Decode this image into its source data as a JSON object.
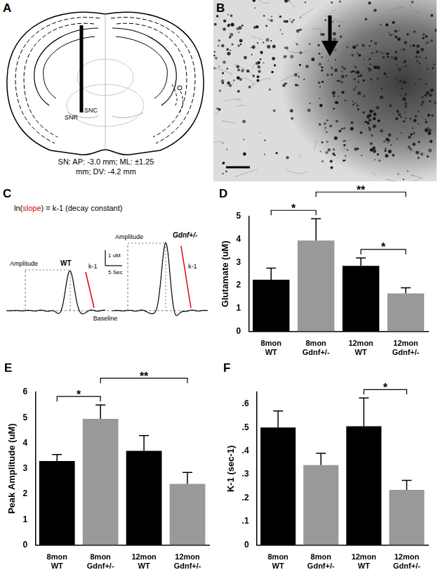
{
  "atlas": {
    "panel": "A",
    "regions": [
      "SNC",
      "SNR"
    ],
    "caption": [
      "SN:  AP: -3.0 mm; ML: ±1.25",
      "mm; DV: -4.2 mm"
    ]
  },
  "micrograph": {
    "panel": "B"
  },
  "traces": {
    "panel": "C",
    "formula": {
      "before": "ln(",
      "highlight": "slope",
      "after": ") = k-1 (decay constant)"
    },
    "names": [
      "WT",
      "Gdnf+/-"
    ],
    "amplitude_label": "Amplitude",
    "decay_label": "k-1",
    "baseline_label": "Baseline",
    "scale_y_label": "1 uM",
    "scale_x_label": "5 Sec"
  },
  "chart_data": [
    {
      "panel": "D",
      "type": "bar",
      "ylabel": "Glutamate (uM)",
      "categories": [
        "8mon WT",
        "8mon Gdnf+/-",
        "12mon WT",
        "12mon Gdnf+/-"
      ],
      "values": [
        2.25,
        3.95,
        2.85,
        1.65
      ],
      "errors": [
        0.5,
        0.95,
        0.35,
        0.25
      ],
      "colors": [
        "#000000",
        "#999999",
        "#000000",
        "#999999"
      ],
      "ylim": [
        0,
        5
      ],
      "yticks": [
        0,
        1,
        2,
        3,
        4,
        5
      ],
      "grid": false,
      "significance": [
        {
          "from": 0,
          "to": 1,
          "label": "*"
        },
        {
          "from": 2,
          "to": 3,
          "label": "*"
        },
        {
          "from": 1,
          "to": 3,
          "label": "**"
        }
      ]
    },
    {
      "panel": "E",
      "type": "bar",
      "ylabel": "Peak Amplitude (uM)",
      "categories": [
        "8mon WT",
        "8mon Gdnf+/-",
        "12mon WT",
        "12mon Gdnf+/-"
      ],
      "values": [
        3.3,
        4.95,
        3.7,
        2.4
      ],
      "errors": [
        0.25,
        0.55,
        0.6,
        0.45
      ],
      "colors": [
        "#000000",
        "#999999",
        "#000000",
        "#999999"
      ],
      "ylim": [
        0,
        6
      ],
      "yticks": [
        0,
        1,
        2,
        3,
        4,
        5,
        6
      ],
      "grid": false,
      "significance": [
        {
          "from": 0,
          "to": 1,
          "label": "*"
        },
        {
          "from": 1,
          "to": 3,
          "label": "**"
        }
      ]
    },
    {
      "panel": "F",
      "type": "bar",
      "ylabel": "K-1 (sec-1)",
      "categories": [
        "8mon WT",
        "8mon Gdnf+/-",
        "12mon WT",
        "12mon Gdnf+/-"
      ],
      "values": [
        0.5,
        0.34,
        0.505,
        0.235
      ],
      "errors": [
        0.07,
        0.05,
        0.12,
        0.04
      ],
      "colors": [
        "#000000",
        "#999999",
        "#000000",
        "#999999"
      ],
      "ylim": [
        0,
        0.65
      ],
      "yticks": [
        0,
        {
          "value": 0.1,
          "label": ".1"
        },
        {
          "value": 0.2,
          "label": ".2"
        },
        {
          "value": 0.3,
          "label": ".3"
        },
        {
          "value": 0.4,
          "label": ".4"
        },
        {
          "value": 0.5,
          "label": ".5"
        },
        {
          "value": 0.6,
          "label": ".6"
        }
      ],
      "grid": false,
      "significance": [
        {
          "from": 2,
          "to": 3,
          "label": "*"
        }
      ]
    }
  ]
}
